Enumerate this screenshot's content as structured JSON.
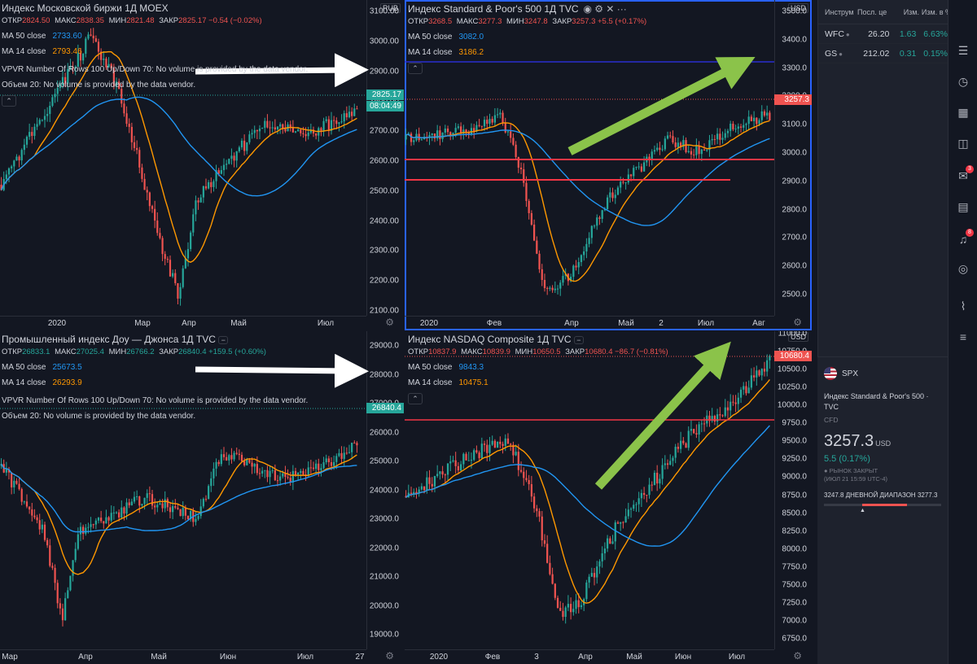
{
  "panes": [
    {
      "id": "moex",
      "title": "Индекс Московской биржи  1Д  MOEX",
      "ohlc": [
        [
          "ОТКР",
          "2824.50"
        ],
        [
          "МАКС",
          "2838.35"
        ],
        [
          "МИН",
          "2821.48"
        ],
        [
          "ЗАКР",
          "2825.17 −0.54 (−0.02%)"
        ]
      ],
      "ma50": {
        "label": "MA 50 close",
        "value": "2733.60"
      },
      "ma14": {
        "label": "MA 14 close",
        "value": "2793.46"
      },
      "vpvr": "VPVR Number Of Rows 100 Up/Down 70: No volume is provided by the data vendor.",
      "volume": "Объем 20: No volume is provided by the data vendor.",
      "currency": "RUB",
      "y_ticks": [
        "3100.00",
        "3000.00",
        "2900.00",
        "2800.00",
        "2700.00",
        "2600.00",
        "2500.00",
        "2400.00",
        "2300.00",
        "2200.00",
        "2100.00"
      ],
      "x_ticks": [
        "2020",
        "Мар",
        "Апр",
        "Май",
        "Июл"
      ],
      "price_tag": "2825.17",
      "timer_tag": "08:04:49"
    },
    {
      "id": "spx",
      "title": "Индекс Standard & Poor's 500  1Д  TVC",
      "ohlc": [
        [
          "ОТКР",
          "3268.5"
        ],
        [
          "МАКС",
          "3277.3"
        ],
        [
          "МИН",
          "3247.8"
        ],
        [
          "ЗАКР",
          "3257.3 +5.5 (+0.17%)"
        ]
      ],
      "ma50": {
        "label": "MA 50 close",
        "value": "3082.0"
      },
      "ma14": {
        "label": "MA 14 close",
        "value": "3186.2"
      },
      "currency": "USD",
      "y_ticks": [
        "3500.0",
        "3400.0",
        "3300.0",
        "3200.0",
        "3100.0",
        "3000.0",
        "2900.0",
        "2800.0",
        "2700.0",
        "2600.0",
        "2500.0"
      ],
      "x_ticks": [
        "2020",
        "Фев",
        "Апр",
        "Май",
        "2",
        "Июл",
        "Авг"
      ],
      "price_tag": "3257.3"
    },
    {
      "id": "dji",
      "title": "Промышленный индекс Доу — Джонса  1Д  TVC",
      "ohlc": [
        [
          "ОТКР",
          "26833.1"
        ],
        [
          "МАКС",
          "27025.4"
        ],
        [
          "МИН",
          "26766.2"
        ],
        [
          "ЗАКР",
          "26840.4 +159.5 (+0.60%)"
        ]
      ],
      "ma50": {
        "label": "MA 50 close",
        "value": "25673.5"
      },
      "ma14": {
        "label": "MA 14 close",
        "value": "26293.9"
      },
      "vpvr": "VPVR Number Of Rows 100 Up/Down 70: No volume is provided by the data vendor.",
      "volume": "Объем 20: No volume is provided by the data vendor.",
      "y_ticks": [
        "29000.0",
        "28000.0",
        "27000.0",
        "26000.0",
        "25000.0",
        "24000.0",
        "23000.0",
        "22000.0",
        "21000.0",
        "20000.0",
        "19000.0"
      ],
      "x_ticks": [
        "Мар",
        "Апр",
        "Май",
        "Июн",
        "Июл",
        "27"
      ],
      "price_tag": "26840.4"
    },
    {
      "id": "ndx",
      "title": "Индекс NASDAQ Composite  1Д  TVC",
      "ohlc": [
        [
          "ОТКР",
          "10837.9"
        ],
        [
          "МАКС",
          "10839.9"
        ],
        [
          "МИН",
          "10650.5"
        ],
        [
          "ЗАКР",
          "10680.4 −86.7 (−0.81%)"
        ]
      ],
      "ma50": {
        "label": "MA 50 close",
        "value": "9843.3"
      },
      "ma14": {
        "label": "MA 14 close",
        "value": "10475.1"
      },
      "currency": "USD",
      "y_ticks": [
        "11000.0",
        "10750.0",
        "10500.0",
        "10250.0",
        "10000.0",
        "9750.0",
        "9500.0",
        "9250.0",
        "9000.0",
        "8750.0",
        "8500.0",
        "8250.0",
        "8000.0",
        "7750.0",
        "7500.0",
        "7250.0",
        "7000.0",
        "6750.0"
      ],
      "x_ticks": [
        "2020",
        "Фев",
        "3",
        "Апр",
        "Май",
        "Июн",
        "Июл"
      ],
      "price_tag": "10680.4"
    }
  ],
  "watchlist": {
    "headers": [
      "Инструм",
      "Посл. це",
      "Изм.",
      "Изм. в %"
    ],
    "rows": [
      {
        "symbol": "WFC",
        "last": "26.20",
        "chg": "1.63",
        "chg_pct": "6.63%"
      },
      {
        "symbol": "GS",
        "last": "212.02",
        "chg": "0.31",
        "chg_pct": "0.15%"
      }
    ]
  },
  "details": {
    "symbol": "SPX",
    "name": "Индекс Standard & Poor's 500 · TVC",
    "type": "CFD",
    "price": "3257.3",
    "currency": "USD",
    "change": "5.5 (0.17%)",
    "status": "● РЫНОК ЗАКРЫТ",
    "status_time": "(ИЮЛ 21 15:59 UTC-4)",
    "range_low": "3247.8",
    "range_label": "ДНЕВНОЙ ДИАПАЗОН",
    "range_high": "3277.3"
  },
  "colors": {
    "up": "#26a69a",
    "down": "#ef5350",
    "ma50": "#2196f3",
    "ma14": "#ff9800",
    "arrow_green": "#8bc34a",
    "active_border": "#2962ff"
  },
  "rail_badges": [
    "3",
    "8"
  ]
}
